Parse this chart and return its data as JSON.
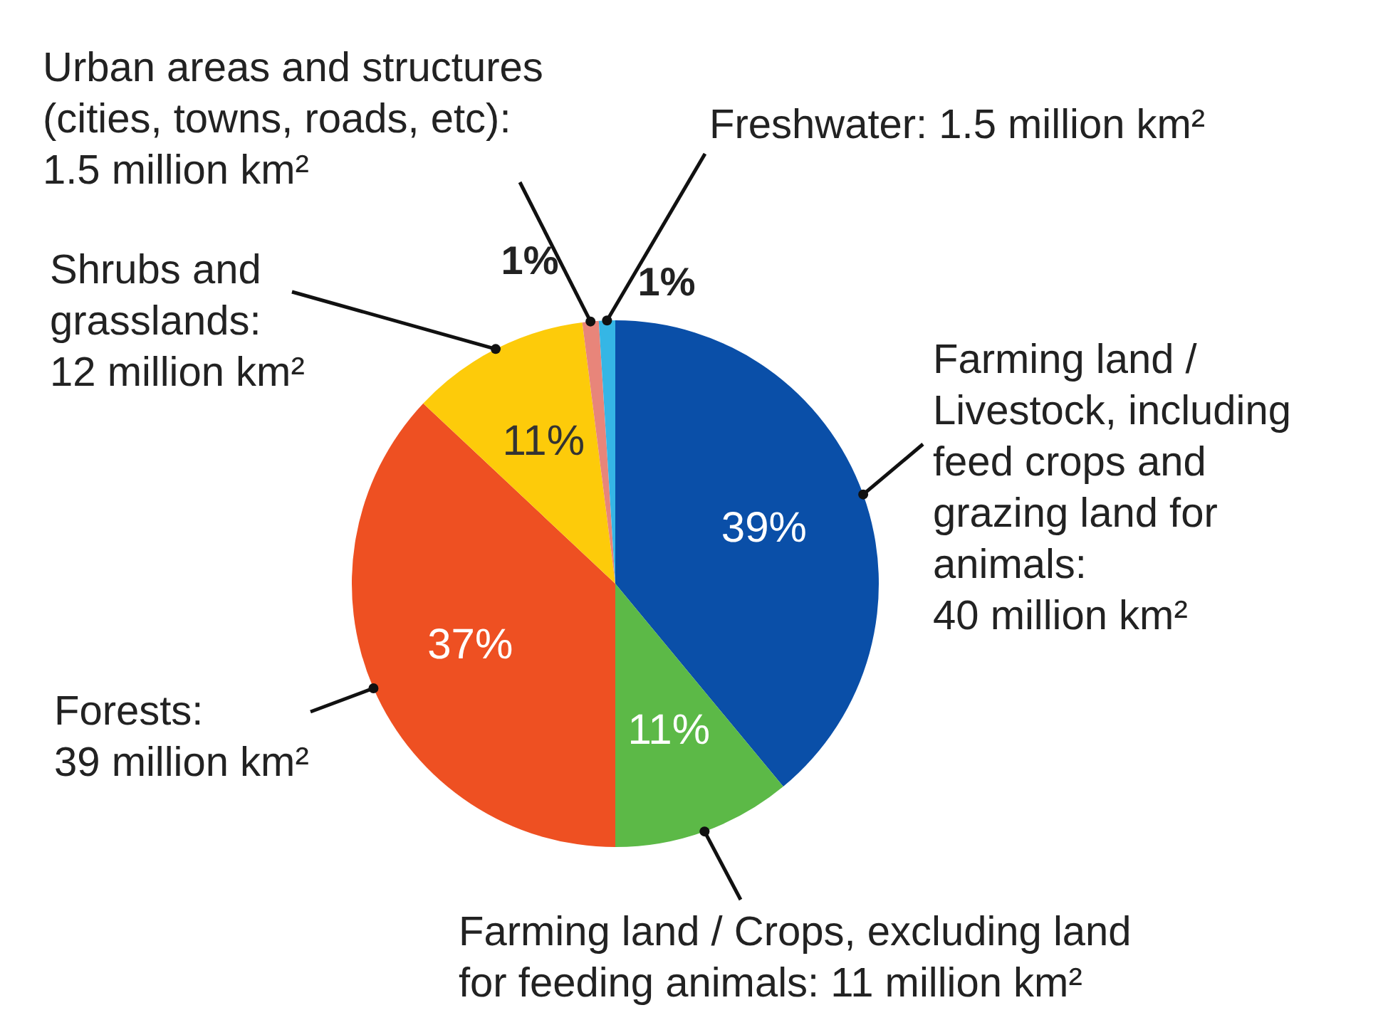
{
  "chart_data": {
    "type": "pie",
    "categories": [
      "Farming land / Livestock, including feed crops and grazing land for animals: 40 million km²",
      "Farming land / Crops, excluding land for feeding animals: 11 million km²",
      "Forests: 39 million km²",
      "Shrubs and grasslands: 12 million km²",
      "Urban areas and structures (cities, towns, roads, etc): 1.5 million km²",
      "Freshwater: 1.5 million km²"
    ],
    "values": [
      39,
      11,
      37,
      11,
      1,
      1
    ],
    "colors": [
      "#0a4fa8",
      "#5cb947",
      "#ee5022",
      "#fdcb0a",
      "#e8857a",
      "#35b6e5"
    ],
    "value_labels": [
      "39%",
      "11%",
      "37%",
      "11%",
      "1%",
      "1%"
    ],
    "legend": false
  }
}
